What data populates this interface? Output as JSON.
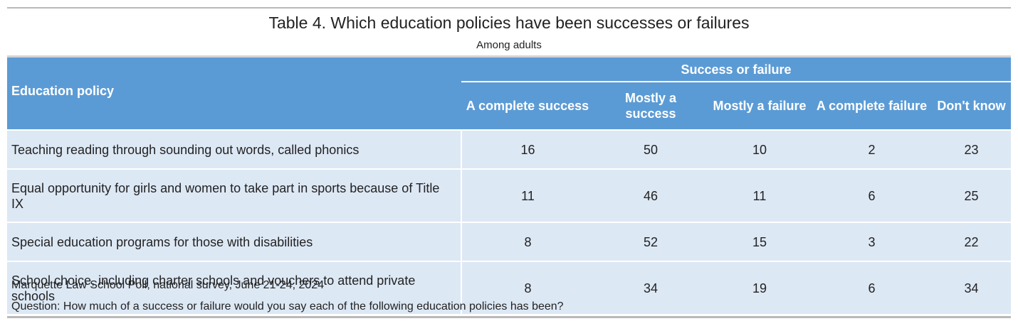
{
  "title": "Table 4. Which education policies have been successes or failures",
  "subtitle": "Among adults",
  "header": {
    "policy_label": "Education policy",
    "group_label": "Success or failure",
    "columns": [
      "A complete success",
      "Mostly a success",
      "Mostly a failure",
      "A complete failure",
      "Don't know"
    ]
  },
  "rows": [
    {
      "policy": "Teaching reading through sounding out words, called phonics",
      "values": [
        "16",
        "50",
        "10",
        "2",
        "23"
      ]
    },
    {
      "policy": "Equal opportunity for girls and women to take part in sports because of Title IX",
      "values": [
        "11",
        "46",
        "11",
        "6",
        "25"
      ]
    },
    {
      "policy": "Special education programs for those with disabilities",
      "values": [
        "8",
        "52",
        "15",
        "3",
        "22"
      ]
    },
    {
      "policy": "School choice, including charter schools and vouchers to attend private schools",
      "values": [
        "8",
        "34",
        "19",
        "6",
        "34"
      ]
    }
  ],
  "footer": {
    "source": "Marquette Law School Poll, national survey, June 21-24, 2024",
    "question": "Question: How much of a success or failure would you say each of the following education policies has been?"
  },
  "colors": {
    "header_bg": "#5b9bd5",
    "row_bg": "#dde8f5",
    "rule": "#b9b9b9"
  }
}
